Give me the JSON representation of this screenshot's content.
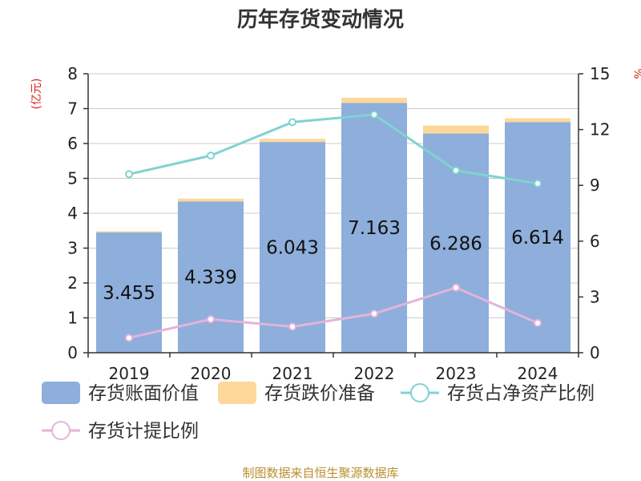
{
  "chart_data": {
    "type": "bar",
    "title": "历年存货变动情况",
    "categories": [
      "2019",
      "2020",
      "2021",
      "2022",
      "2023",
      "2024"
    ],
    "y_left": {
      "unit": "(亿元)",
      "ylim": [
        0,
        8
      ],
      "ticks": [
        "0",
        "1",
        "2",
        "3",
        "4",
        "5",
        "6",
        "7",
        "8"
      ]
    },
    "y_right": {
      "unit": "%",
      "ylim": [
        0,
        15
      ],
      "ticks": [
        "0",
        "3",
        "6",
        "9",
        "12",
        "15"
      ]
    },
    "series": [
      {
        "name": "存货账面价值",
        "kind": "bar",
        "axis": "left",
        "color": "#8eaedb",
        "values": [
          3.455,
          4.339,
          6.043,
          7.163,
          6.286,
          6.614
        ],
        "labels": [
          "3.455",
          "4.339",
          "6.043",
          "7.163",
          "6.286",
          "6.614"
        ]
      },
      {
        "name": "存货跌价准备",
        "kind": "bar-stacked",
        "axis": "left",
        "color": "#fdd89a",
        "values": [
          0.03,
          0.08,
          0.09,
          0.15,
          0.23,
          0.11
        ]
      },
      {
        "name": "存货占净资产比例",
        "kind": "line",
        "axis": "right",
        "color": "#7fd3d1",
        "values": [
          9.6,
          10.6,
          12.4,
          12.8,
          9.8,
          9.1
        ]
      },
      {
        "name": "存货计提比例",
        "kind": "line",
        "axis": "right",
        "color": "#e4b3da",
        "values": [
          0.8,
          1.8,
          1.4,
          2.1,
          3.5,
          1.6
        ]
      }
    ],
    "grid": true,
    "legend_position": "bottom"
  },
  "footer": {
    "source": "制图数据来自恒生聚源数据库"
  },
  "colors": {
    "unit_red": "#d9261c",
    "source_gold": "#b8902c",
    "axis": "#333333",
    "grid": "#cccccc"
  }
}
